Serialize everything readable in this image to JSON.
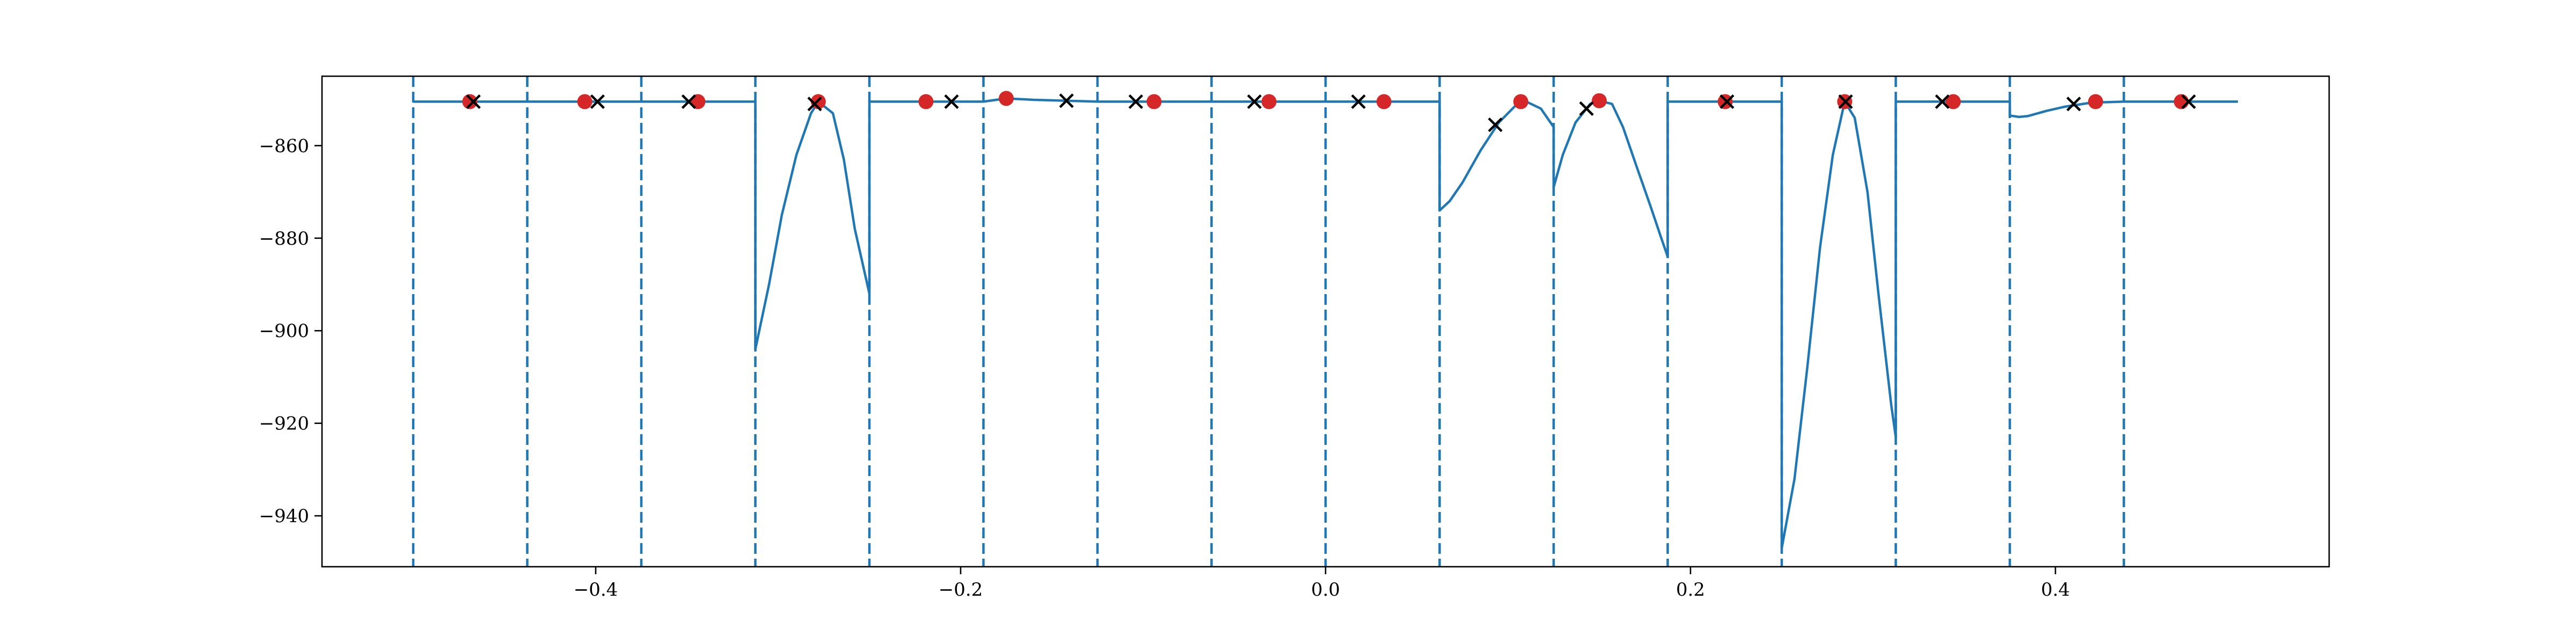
{
  "chart_data": {
    "type": "line",
    "title": "",
    "xlabel": "",
    "ylabel": "",
    "xlim": [
      -0.55,
      0.55
    ],
    "ylim": [
      -951,
      -845
    ],
    "x_ticks": [
      -0.4,
      -0.2,
      0.0,
      0.2,
      0.4
    ],
    "x_tick_labels": [
      "−0.4",
      "−0.2",
      "0.0",
      "0.2",
      "0.4"
    ],
    "y_ticks": [
      -860,
      -880,
      -900,
      -920,
      -940
    ],
    "y_tick_labels": [
      "−860",
      "−880",
      "−900",
      "−920",
      "−940"
    ],
    "grid": false,
    "legend": "none",
    "colors": {
      "line": "#1f77b4",
      "dot": "#d62728",
      "cross": "#000000",
      "axes": "#000000"
    },
    "vlines": [
      -0.5,
      -0.4375,
      -0.375,
      -0.3125,
      -0.25,
      -0.1875,
      -0.125,
      -0.0625,
      0.0,
      0.0625,
      0.125,
      0.1875,
      0.25,
      0.3125,
      0.375,
      0.4375
    ],
    "series": [
      {
        "values": [
          [
            -0.5,
            -850.5
          ],
          [
            -0.4375,
            -850.5
          ],
          [
            -0.375,
            -850.5
          ],
          [
            -0.3125,
            -850.5
          ],
          [
            -0.3125,
            -904
          ],
          [
            -0.305,
            -890
          ],
          [
            -0.298,
            -875
          ],
          [
            -0.29,
            -862
          ],
          [
            -0.282,
            -853
          ],
          [
            -0.278,
            -850.5
          ],
          [
            -0.27,
            -853
          ],
          [
            -0.264,
            -863
          ],
          [
            -0.258,
            -878
          ],
          [
            -0.25,
            -892
          ],
          [
            -0.25,
            -850.5
          ],
          [
            -0.22,
            -850.5
          ],
          [
            -0.1875,
            -850.5
          ],
          [
            -0.175,
            -849.8
          ],
          [
            -0.16,
            -850.1
          ],
          [
            -0.125,
            -850.5
          ],
          [
            -0.0625,
            -850.5
          ],
          [
            0.0,
            -850.5
          ],
          [
            0.0625,
            -850.5
          ],
          [
            0.0625,
            -874
          ],
          [
            0.068,
            -872
          ],
          [
            0.075,
            -868
          ],
          [
            0.085,
            -861
          ],
          [
            0.095,
            -855
          ],
          [
            0.105,
            -851
          ],
          [
            0.11,
            -850.5
          ],
          [
            0.118,
            -852
          ],
          [
            0.125,
            -856
          ],
          [
            0.125,
            -869
          ],
          [
            0.13,
            -862
          ],
          [
            0.137,
            -855
          ],
          [
            0.145,
            -851
          ],
          [
            0.15,
            -850.3
          ],
          [
            0.157,
            -851
          ],
          [
            0.163,
            -856
          ],
          [
            0.17,
            -864
          ],
          [
            0.178,
            -873
          ],
          [
            0.184,
            -880
          ],
          [
            0.1875,
            -884
          ],
          [
            0.1875,
            -850.5
          ],
          [
            0.25,
            -850.5
          ],
          [
            0.25,
            -947
          ],
          [
            0.257,
            -932
          ],
          [
            0.264,
            -908
          ],
          [
            0.271,
            -882
          ],
          [
            0.278,
            -862
          ],
          [
            0.2845,
            -850.5
          ],
          [
            0.29,
            -854
          ],
          [
            0.297,
            -870
          ],
          [
            0.303,
            -892
          ],
          [
            0.31,
            -916
          ],
          [
            0.3125,
            -923
          ],
          [
            0.3125,
            -850.5
          ],
          [
            0.375,
            -850.5
          ],
          [
            0.375,
            -853.5
          ],
          [
            0.38,
            -853.8
          ],
          [
            0.385,
            -853.6
          ],
          [
            0.395,
            -852.5
          ],
          [
            0.405,
            -851.6
          ],
          [
            0.42,
            -850.7
          ],
          [
            0.4375,
            -850.5
          ],
          [
            0.4375,
            -850.5
          ],
          [
            0.5,
            -850.5
          ]
        ]
      }
    ],
    "dots": [
      [
        -0.469,
        -850.5
      ],
      [
        -0.406,
        -850.5
      ],
      [
        -0.344,
        -850.5
      ],
      [
        -0.278,
        -850.5
      ],
      [
        -0.219,
        -850.5
      ],
      [
        -0.175,
        -849.8
      ],
      [
        -0.094,
        -850.5
      ],
      [
        -0.031,
        -850.5
      ],
      [
        0.032,
        -850.5
      ],
      [
        0.107,
        -850.5
      ],
      [
        0.15,
        -850.3
      ],
      [
        0.219,
        -850.5
      ],
      [
        0.2845,
        -850.5
      ],
      [
        0.344,
        -850.5
      ],
      [
        0.422,
        -850.5
      ],
      [
        0.469,
        -850.5
      ]
    ],
    "crosses": [
      [
        -0.467,
        -850.5
      ],
      [
        -0.399,
        -850.5
      ],
      [
        -0.349,
        -850.5
      ],
      [
        -0.28,
        -851
      ],
      [
        -0.205,
        -850.5
      ],
      [
        -0.142,
        -850.3
      ],
      [
        -0.104,
        -850.5
      ],
      [
        -0.039,
        -850.5
      ],
      [
        0.018,
        -850.5
      ],
      [
        0.093,
        -855.5
      ],
      [
        0.143,
        -852
      ],
      [
        0.22,
        -850.5
      ],
      [
        0.285,
        -850.5
      ],
      [
        0.338,
        -850.5
      ],
      [
        0.41,
        -851
      ],
      [
        0.473,
        -850.5
      ]
    ]
  }
}
